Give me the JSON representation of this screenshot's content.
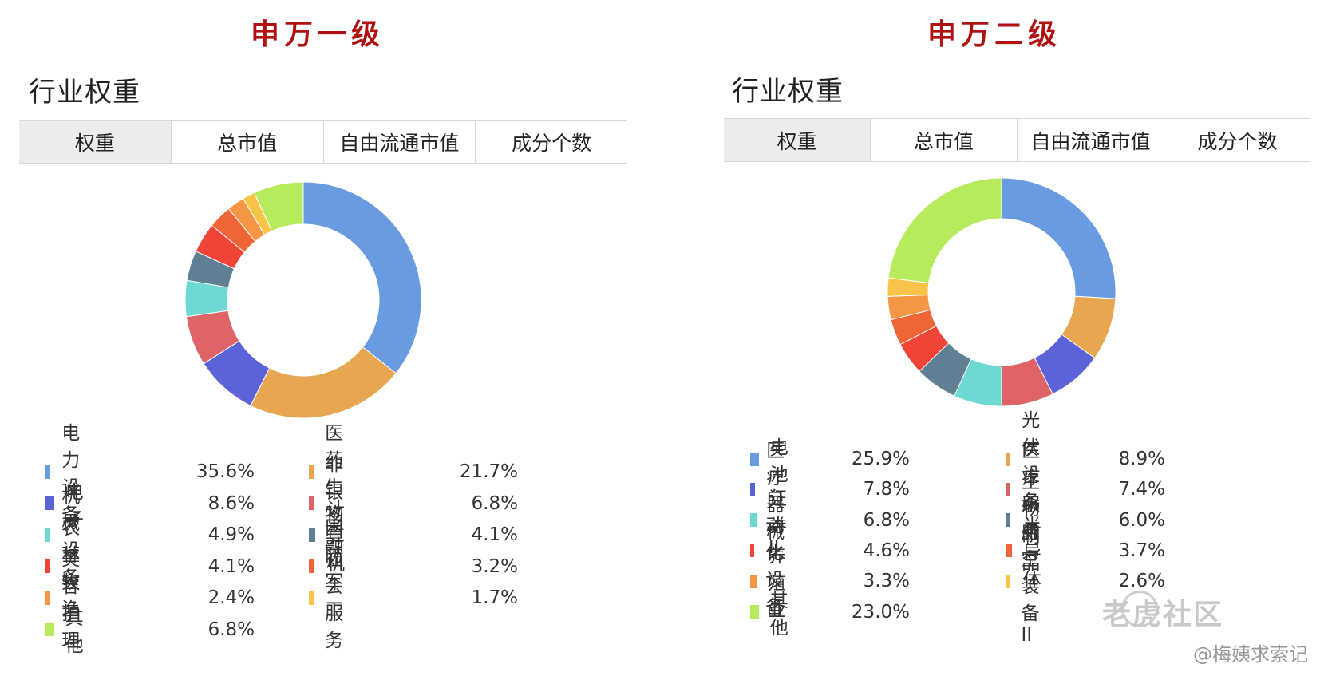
{
  "left": {
    "level_title": "申万一级",
    "section_title": "行业权重",
    "tabs": [
      {
        "label": "权重",
        "active": true
      },
      {
        "label": "总市值",
        "active": false
      },
      {
        "label": "自由流通市值",
        "active": false
      },
      {
        "label": "成分个数",
        "active": false
      }
    ]
  },
  "right": {
    "level_title": "申万二级",
    "section_title": "行业权重",
    "tabs": [
      {
        "label": "权重",
        "active": true
      },
      {
        "label": "总市值",
        "active": false
      },
      {
        "label": "自由流通市值",
        "active": false
      },
      {
        "label": "成分个数",
        "active": false
      }
    ]
  },
  "chart_data": [
    {
      "type": "pie",
      "title": "申万一级",
      "unit": "%",
      "slices": [
        {
          "label": "电力设备",
          "value": 35.6,
          "display": "35.6%",
          "color": "#6a9be0"
        },
        {
          "label": "医药生物",
          "value": 21.7,
          "display": "21.7%",
          "color": "#e8a651"
        },
        {
          "label": "电子",
          "value": 8.6,
          "display": "8.6%",
          "color": "#5c63d6"
        },
        {
          "label": "非银金融",
          "value": 6.8,
          "display": "6.8%",
          "color": "#de6468"
        },
        {
          "label": "机械设备",
          "value": 4.9,
          "display": "4.9%",
          "color": "#6dd9d0"
        },
        {
          "label": "计算机",
          "value": 4.1,
          "display": "4.1%",
          "color": "#5f7f94"
        },
        {
          "label": "农林牧渔",
          "value": 4.1,
          "display": "4.1%",
          "color": "#ef4436"
        },
        {
          "label": "国防军工",
          "value": 3.2,
          "display": "3.2%",
          "color": "#ef6535"
        },
        {
          "label": "美容护理",
          "value": 2.4,
          "display": "2.4%",
          "color": "#f59644"
        },
        {
          "label": "社会服务",
          "value": 1.7,
          "display": "1.7%",
          "color": "#f7c447"
        },
        {
          "label": "其他",
          "value": 6.8,
          "display": "6.8%",
          "color": "#b8ea5e"
        }
      ]
    },
    {
      "type": "pie",
      "title": "申万二级",
      "unit": "%",
      "slices": [
        {
          "label": "电池",
          "value": 25.9,
          "display": "25.9%",
          "color": "#6a9be0"
        },
        {
          "label": "光伏设备",
          "value": 8.9,
          "display": "8.9%",
          "color": "#e8a651"
        },
        {
          "label": "医疗器械",
          "value": 7.8,
          "display": "7.8%",
          "color": "#5c63d6"
        },
        {
          "label": "医疗服务",
          "value": 7.4,
          "display": "7.4%",
          "color": "#de6468"
        },
        {
          "label": "证券II",
          "value": 6.8,
          "display": "6.8%",
          "color": "#6dd9d0"
        },
        {
          "label": "生物制品",
          "value": 6.0,
          "display": "6.0%",
          "color": "#5f7f94"
        },
        {
          "label": "自动化设备",
          "value": 4.6,
          "display": "4.6%",
          "color": "#ef4436"
        },
        {
          "label": "半导体",
          "value": 3.7,
          "display": "3.7%",
          "color": "#ef6535"
        },
        {
          "label": "养殖业",
          "value": 3.3,
          "display": "3.3%",
          "color": "#f59644"
        },
        {
          "label": "航空装备II",
          "value": 2.6,
          "display": "2.6%",
          "color": "#f7c447"
        },
        {
          "label": "其他",
          "value": 23.0,
          "display": "23.0%",
          "color": "#b8ea5e"
        }
      ]
    }
  ],
  "watermark": {
    "logo_text": "老虎社区",
    "credit": "@梅姨求索记"
  }
}
